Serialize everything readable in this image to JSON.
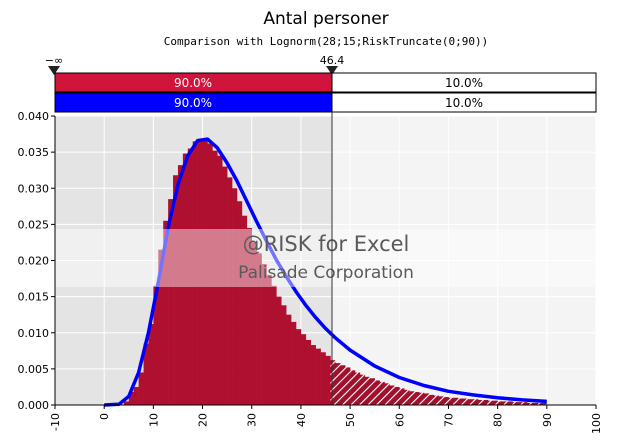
{
  "chart_data": {
    "type": "bar",
    "title": "Antal personer",
    "subtitle": "Comparison with  Lognorm(28;15;RiskTruncate(0;90))",
    "xlim": [
      -10,
      100
    ],
    "ylim": [
      0,
      0.04
    ],
    "x_ticks": [
      "-10",
      "0",
      "10",
      "20",
      "30",
      "40",
      "50",
      "60",
      "70",
      "80",
      "90",
      "100"
    ],
    "y_ticks": [
      "0.000",
      "0.005",
      "0.010",
      "0.015",
      "0.020",
      "0.025",
      "0.030",
      "0.035",
      "0.040"
    ],
    "delimiters": {
      "left": "−∞",
      "right": "46.4",
      "right_value": 46.4
    },
    "bands": [
      {
        "left_pct": "90.0%",
        "right_pct": "10.0%",
        "color": "#d0143c"
      },
      {
        "left_pct": "90.0%",
        "right_pct": "10.0%",
        "color": "#0000ff"
      }
    ],
    "series": [
      {
        "kind": "histogram",
        "color": "#b01030",
        "bin_width": 1,
        "x": [
          4,
          5,
          6,
          7,
          8,
          9,
          10,
          11,
          12,
          13,
          14,
          15,
          16,
          17,
          18,
          19,
          20,
          21,
          22,
          23,
          24,
          25,
          26,
          27,
          28,
          29,
          30,
          31,
          32,
          33,
          34,
          35,
          36,
          37,
          38,
          39,
          40,
          41,
          42,
          43,
          44,
          45,
          46,
          47,
          48,
          49,
          50,
          51,
          52,
          53,
          54,
          55,
          56,
          57,
          58,
          59,
          60,
          61,
          62,
          63,
          64,
          65,
          66,
          67,
          68,
          69,
          70,
          71,
          72,
          73,
          74,
          75,
          76,
          77,
          78,
          79,
          80,
          81,
          82,
          83,
          84,
          85,
          86,
          87,
          88,
          89
        ],
        "values": [
          0.0005,
          0.0018,
          0.0025,
          0.0045,
          0.0085,
          0.0112,
          0.0165,
          0.0215,
          0.0255,
          0.0285,
          0.0318,
          0.0332,
          0.0348,
          0.0355,
          0.0365,
          0.0368,
          0.0366,
          0.0362,
          0.0352,
          0.0345,
          0.033,
          0.0315,
          0.03,
          0.0282,
          0.0262,
          0.0245,
          0.0225,
          0.021,
          0.0195,
          0.018,
          0.0165,
          0.015,
          0.0138,
          0.0125,
          0.0115,
          0.0105,
          0.0098,
          0.009,
          0.0083,
          0.0078,
          0.0073,
          0.0068,
          0.0062,
          0.0058,
          0.0055,
          0.0052,
          0.0048,
          0.0045,
          0.0042,
          0.0039,
          0.0037,
          0.0034,
          0.0032,
          0.003,
          0.0027,
          0.0025,
          0.0023,
          0.0021,
          0.0019,
          0.0018,
          0.0017,
          0.0016,
          0.0014,
          0.0013,
          0.0012,
          0.0011,
          0.001,
          0.001,
          0.0009,
          0.0009,
          0.0008,
          0.0008,
          0.0007,
          0.0007,
          0.0006,
          0.0006,
          0.0005,
          0.0005,
          0.0005,
          0.0004,
          0.0004,
          0.0004,
          0.0003,
          0.0003,
          0.0003,
          0.0003
        ]
      },
      {
        "kind": "line",
        "color": "#0000ff",
        "x": [
          0,
          3,
          5,
          7,
          9,
          11,
          13,
          15,
          17,
          19,
          21,
          23,
          25,
          27,
          29,
          31,
          33,
          35,
          37,
          39,
          41,
          43,
          45,
          47,
          50,
          55,
          60,
          65,
          70,
          75,
          80,
          85,
          90
        ],
        "values": [
          0,
          0.0001,
          0.0012,
          0.0045,
          0.01,
          0.017,
          0.0245,
          0.0305,
          0.0345,
          0.0366,
          0.0368,
          0.0356,
          0.0335,
          0.031,
          0.0282,
          0.0254,
          0.0227,
          0.0201,
          0.0178,
          0.0157,
          0.0138,
          0.0121,
          0.0106,
          0.0093,
          0.0076,
          0.0054,
          0.0038,
          0.0027,
          0.0019,
          0.0014,
          0.001,
          0.0007,
          0.0005
        ]
      }
    ],
    "watermark": {
      "line1": "@RISK for Excel",
      "line2": "Palisade Corporation"
    },
    "grid": true
  }
}
